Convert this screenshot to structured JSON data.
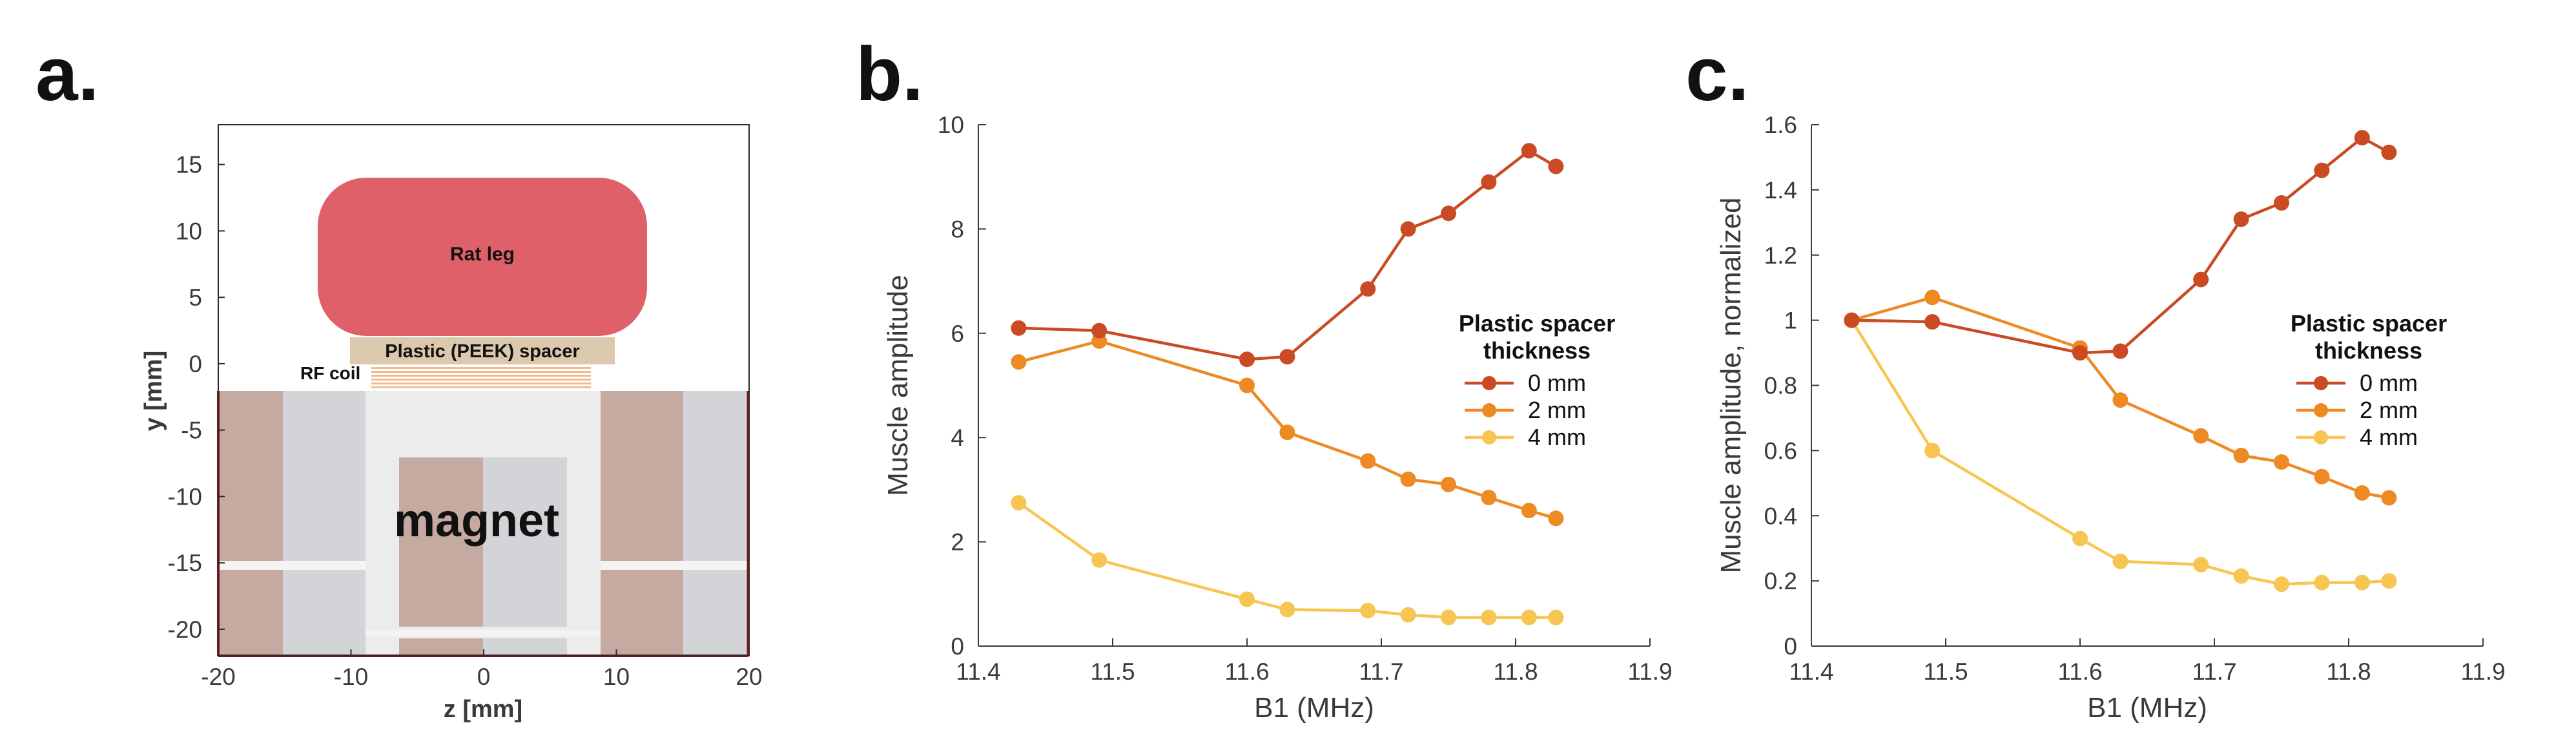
{
  "panel_letters": {
    "a": "a.",
    "b": "b.",
    "c": "c."
  },
  "colors": {
    "series_0mm": "#c94a23",
    "series_2mm": "#ee8a24",
    "series_4mm": "#f7c552",
    "rat_leg": "#e0606a",
    "spacer": "#dcc9ad",
    "coil": "#f2b98a",
    "magnet_brown": "#c6aaa2",
    "magnet_gray": "#d3d4d8",
    "magnet_bg": "#ececec"
  },
  "schematic": {
    "xlabel": "z [mm]",
    "ylabel": "y [mm]",
    "xlim": [
      -20,
      20
    ],
    "ylim": [
      -22,
      18
    ],
    "xticks": [
      -20,
      -10,
      0,
      10,
      20
    ],
    "yticks": [
      15,
      10,
      5,
      0,
      -5,
      -10,
      -15,
      -20
    ],
    "labels": {
      "rat_leg": "Rat leg",
      "spacer": "Plastic (PEEK) spacer",
      "rf_coil": "RF coil",
      "magnet": "magnet"
    }
  },
  "chart_data": [
    {
      "type": "line",
      "title": "",
      "xlabel": "B1 (MHz)",
      "ylabel": "Muscle amplitude",
      "xlim": [
        11.4,
        11.9
      ],
      "ylim": [
        0,
        10
      ],
      "xticks": [
        11.4,
        11.5,
        11.6,
        11.7,
        11.8,
        11.9
      ],
      "yticks": [
        0,
        2,
        4,
        6,
        8,
        10
      ],
      "xtick_labels": [
        "11.4",
        "11.5",
        "11.6",
        "11.7",
        "11.8",
        "11.9"
      ],
      "ytick_labels": [
        "0",
        "2",
        "4",
        "6",
        "8",
        "10"
      ],
      "legend_title": [
        "Plastic spacer",
        "thickness"
      ],
      "legend_position": "center-right",
      "series": [
        {
          "name": "0 mm",
          "x": [
            11.43,
            11.49,
            11.6,
            11.63,
            11.69,
            11.72,
            11.75,
            11.78,
            11.81,
            11.83
          ],
          "y": [
            6.1,
            6.05,
            5.5,
            5.55,
            6.85,
            8.0,
            8.3,
            8.9,
            9.5,
            9.2
          ]
        },
        {
          "name": "2 mm",
          "x": [
            11.43,
            11.49,
            11.6,
            11.63,
            11.69,
            11.72,
            11.75,
            11.78,
            11.81,
            11.83
          ],
          "y": [
            5.45,
            5.85,
            5.0,
            4.1,
            3.55,
            3.2,
            3.1,
            2.85,
            2.6,
            2.45
          ]
        },
        {
          "name": "4 mm",
          "x": [
            11.43,
            11.49,
            11.6,
            11.63,
            11.69,
            11.72,
            11.75,
            11.78,
            11.81,
            11.83
          ],
          "y": [
            2.75,
            1.65,
            0.9,
            0.7,
            0.68,
            0.6,
            0.55,
            0.55,
            0.55,
            0.55
          ]
        }
      ]
    },
    {
      "type": "line",
      "title": "",
      "xlabel": "B1 (MHz)",
      "ylabel": "Muscle amplitude, normalized",
      "xlim": [
        11.4,
        11.9
      ],
      "ylim": [
        0,
        1.6
      ],
      "xticks": [
        11.4,
        11.5,
        11.6,
        11.7,
        11.8,
        11.9
      ],
      "yticks": [
        0,
        0.2,
        0.4,
        0.6,
        0.8,
        1.0,
        1.2,
        1.4,
        1.6
      ],
      "xtick_labels": [
        "11.4",
        "11.5",
        "11.6",
        "11.7",
        "11.8",
        "11.9"
      ],
      "ytick_labels": [
        "0",
        "0.2",
        "0.4",
        "0.6",
        "0.8",
        "1",
        "1.2",
        "1.4",
        "1.6"
      ],
      "legend_title": [
        "Plastic spacer",
        "thickness"
      ],
      "legend_position": "center-right",
      "series": [
        {
          "name": "0 mm",
          "x": [
            11.43,
            11.49,
            11.6,
            11.63,
            11.69,
            11.72,
            11.75,
            11.78,
            11.81,
            11.83
          ],
          "y": [
            1.0,
            0.995,
            0.9,
            0.905,
            1.125,
            1.31,
            1.36,
            1.46,
            1.56,
            1.515
          ]
        },
        {
          "name": "2 mm",
          "x": [
            11.43,
            11.49,
            11.6,
            11.63,
            11.69,
            11.72,
            11.75,
            11.78,
            11.81,
            11.83
          ],
          "y": [
            1.0,
            1.07,
            0.915,
            0.755,
            0.645,
            0.585,
            0.565,
            0.52,
            0.47,
            0.455
          ]
        },
        {
          "name": "4 mm",
          "x": [
            11.43,
            11.49,
            11.6,
            11.63,
            11.69,
            11.72,
            11.75,
            11.78,
            11.81,
            11.83
          ],
          "y": [
            1.0,
            0.6,
            0.33,
            0.26,
            0.25,
            0.215,
            0.19,
            0.195,
            0.195,
            0.2
          ]
        }
      ]
    }
  ]
}
